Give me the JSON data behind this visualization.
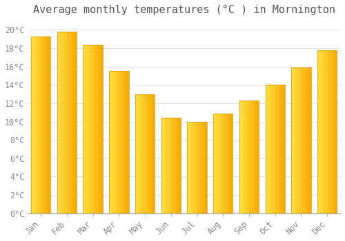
{
  "title": "Average monthly temperatures (°C ) in Mornington",
  "months": [
    "Jan",
    "Feb",
    "Mar",
    "Apr",
    "May",
    "Jun",
    "Jul",
    "Aug",
    "Sep",
    "Oct",
    "Nov",
    "Dec"
  ],
  "values": [
    19.3,
    19.8,
    18.4,
    15.5,
    13.0,
    10.4,
    10.0,
    10.9,
    12.3,
    14.0,
    15.9,
    17.8
  ],
  "bar_color_left": "#FFE040",
  "bar_color_right": "#F5A800",
  "bar_edge_color": "#E09000",
  "background_color": "#ffffff",
  "grid_color": "#dddddd",
  "ylim": [
    0,
    21
  ],
  "ytick_step": 2,
  "title_fontsize": 11,
  "tick_fontsize": 8.5,
  "title_color": "#555555",
  "tick_color": "#888888",
  "figsize": [
    5.0,
    3.5
  ],
  "dpi": 100,
  "bar_width": 0.75,
  "n_gradient_strips": 20
}
